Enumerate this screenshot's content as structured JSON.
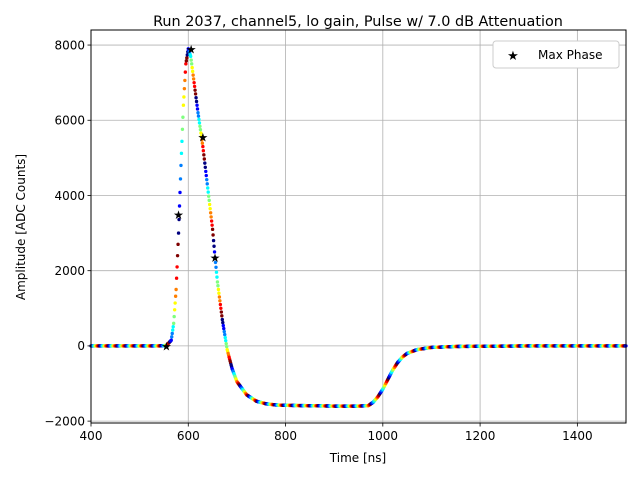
{
  "chart_data": {
    "type": "scatter",
    "title": "Run 2037, channel5, lo gain, Pulse w/ 7.0 dB Attenuation",
    "xlabel": "Time [ns]",
    "ylabel": "Amplitude [ADC Counts]",
    "xlim": [
      400,
      1500
    ],
    "ylim": [
      -2050,
      8400
    ],
    "xticks": [
      400,
      600,
      800,
      1000,
      1200,
      1400
    ],
    "yticks": [
      -2000,
      0,
      2000,
      4000,
      6000,
      8000
    ],
    "grid": true,
    "legend": {
      "position": "top-right",
      "entries": [
        "Max Phase"
      ]
    },
    "colormap": [
      "#00007f",
      "#0000ff",
      "#007fff",
      "#00ffff",
      "#7fff7f",
      "#ffff00",
      "#ff7f00",
      "#ff0000",
      "#7f0000"
    ],
    "pulse_shape": {
      "x": [
        400,
        540,
        555,
        565,
        570,
        575,
        580,
        585,
        590,
        595,
        600,
        605,
        610,
        615,
        620,
        630,
        640,
        650,
        655,
        660,
        670,
        680,
        690,
        700,
        720,
        740,
        760,
        780,
        800,
        850,
        900,
        950,
        970,
        980,
        990,
        1000,
        1010,
        1020,
        1030,
        1040,
        1050,
        1070,
        1100,
        1150,
        1200,
        1300,
        1400,
        1500
      ],
      "y": [
        0,
        0,
        10,
        150,
        600,
        1500,
        3000,
        4800,
        6400,
        7500,
        7900,
        7700,
        7200,
        6700,
        6200,
        5300,
        4200,
        3100,
        2350,
        1700,
        700,
        -100,
        -600,
        -950,
        -1300,
        -1470,
        -1540,
        -1570,
        -1580,
        -1590,
        -1600,
        -1600,
        -1590,
        -1500,
        -1350,
        -1150,
        -900,
        -650,
        -450,
        -300,
        -200,
        -100,
        -40,
        -15,
        -10,
        0,
        0,
        0
      ]
    },
    "max_phase": {
      "name": "Max Phase",
      "x": [
        555,
        580,
        606,
        630,
        655
      ],
      "y": [
        0,
        3500,
        7900,
        5550,
        2350
      ]
    }
  }
}
